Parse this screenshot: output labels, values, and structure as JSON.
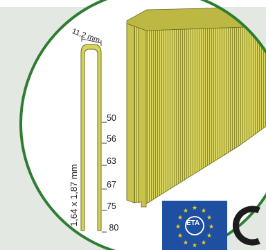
{
  "staple": {
    "crown_width": "11,2 mm",
    "wire_size": "1,64 x 1,87 mm",
    "lengths": [
      "_50",
      "_56",
      "_63",
      "_67",
      "_75",
      "_ 80"
    ]
  },
  "certification": {
    "eta_text": "ETA"
  },
  "colors": {
    "background_panel": "#e3e8e2",
    "circle_border": "#2e7d32",
    "staple_fill": "#d6d25a",
    "staple_outline": "#6b6a1e",
    "eu_blue": "#1f4fa0",
    "eu_star": "#f2d21b"
  },
  "icons": {
    "eta_mark": "eta-eu-stars-icon",
    "ce_mark": "ce-mark-icon"
  }
}
